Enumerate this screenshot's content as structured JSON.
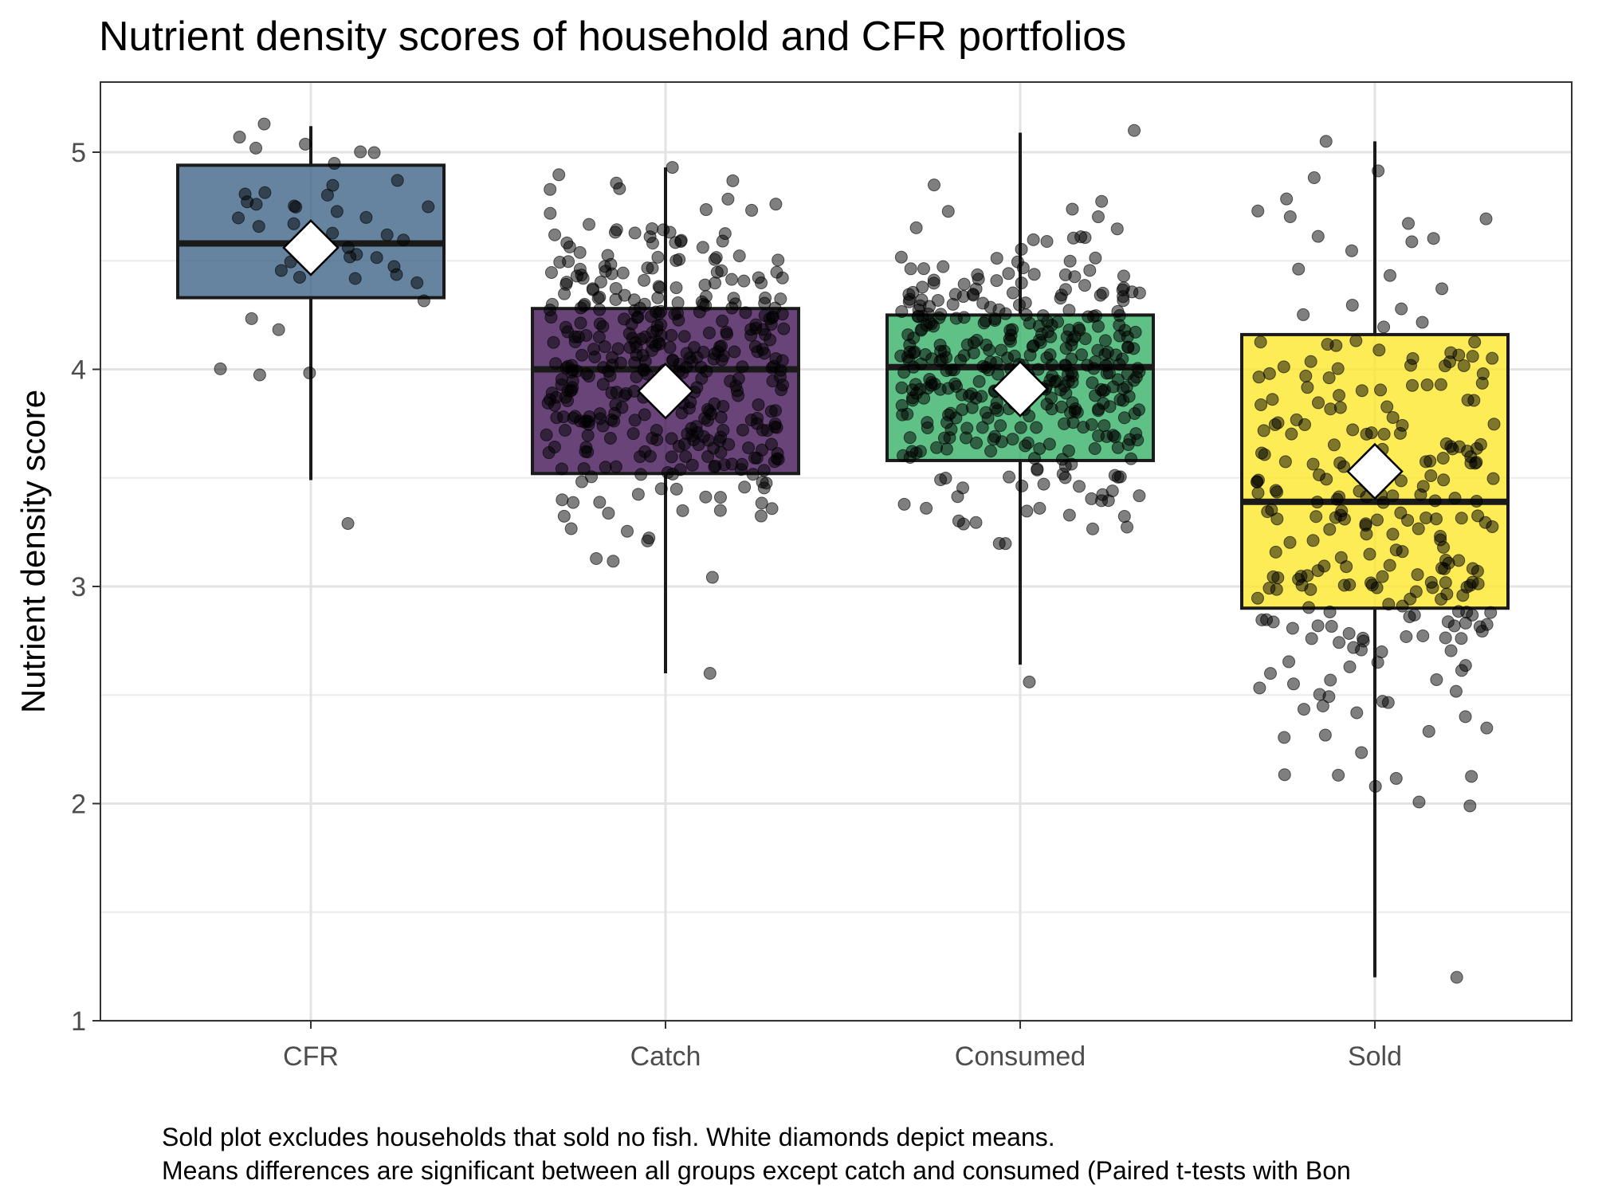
{
  "chart_data": {
    "type": "box",
    "title": "Nutrient density scores of household and CFR portfolios",
    "xlabel": "",
    "ylabel": "Nutrient density score",
    "ylim": [
      1,
      5.3
    ],
    "y_ticks": [
      "1",
      "2",
      "3",
      "4",
      "5"
    ],
    "categories": [
      "CFR",
      "Catch",
      "Consumed",
      "Sold"
    ],
    "grid": true,
    "legend": "none",
    "series": [
      {
        "category": "CFR",
        "color": "#3b6185",
        "whisker_low": 3.49,
        "q1": 4.33,
        "median": 4.58,
        "q3": 4.94,
        "whisker_high": 5.12,
        "mean": 4.56,
        "n_points": 45,
        "point_min": 3.29,
        "point_max": 5.13
      },
      {
        "category": "Catch",
        "color": "#3d0f53",
        "whisker_low": 2.6,
        "q1": 3.52,
        "median": 4.0,
        "q3": 4.28,
        "whisker_high": 4.93,
        "mean": 3.9,
        "n_points": 400,
        "point_min": 2.6,
        "point_max": 4.93
      },
      {
        "category": "Consumed",
        "color": "#33b065",
        "whisker_low": 2.64,
        "q1": 3.58,
        "median": 4.01,
        "q3": 4.25,
        "whisker_high": 5.09,
        "mean": 3.91,
        "n_points": 380,
        "point_min": 2.56,
        "point_max": 5.1
      },
      {
        "category": "Sold",
        "color": "#fde725",
        "whisker_low": 1.2,
        "q1": 2.9,
        "median": 3.39,
        "q3": 4.16,
        "whisker_high": 5.05,
        "mean": 3.53,
        "n_points": 260,
        "point_min": 1.2,
        "point_max": 5.05
      }
    ],
    "caption": [
      "Sold plot excludes households that sold no fish. White diamonds depict means.",
      "Means differences are significant between all groups except catch and consumed (Paired t-tests with Bon"
    ]
  }
}
